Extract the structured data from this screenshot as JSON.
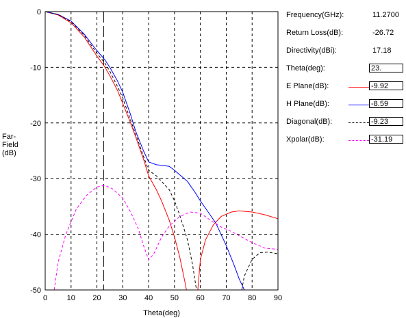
{
  "y_axis_label": [
    "Far-",
    "Field",
    "(dB)"
  ],
  "info": {
    "frequency_label": "Frequency(GHz):",
    "frequency_value": "11.2700",
    "return_loss_label": "Return Loss(dB):",
    "return_loss_value": "-26.72",
    "directivity_label": "Directivity(dBi):",
    "directivity_value": "17.18",
    "theta_label": "Theta(deg):",
    "theta_value": "23.",
    "e_plane_label": "E Plane(dB):",
    "e_plane_value": "-9.92",
    "h_plane_label": "H Plane(dB):",
    "h_plane_value": "-8.59",
    "diagonal_label": "Diagonal(dB):",
    "diagonal_value": "-9.23",
    "xpolar_label": "Xpolar(dB):",
    "xpolar_value": "-31.19"
  },
  "colors": {
    "e_plane": "#ff0000",
    "h_plane": "#0000ff",
    "diagonal": "#000000",
    "xpolar": "#ff00ff"
  },
  "chart_data": {
    "type": "line",
    "xlabel": "Theta(deg)",
    "ylabel": "Far-Field (dB)",
    "xlim": [
      0,
      90
    ],
    "ylim": [
      -50,
      0
    ],
    "xticks": [
      "0",
      "10",
      "20",
      "30",
      "40",
      "50",
      "60",
      "70",
      "80",
      "90"
    ],
    "yticks": [
      "0",
      "-10",
      "-20",
      "-30",
      "-40",
      "-50"
    ],
    "grid": true,
    "cursor_theta": 22.6,
    "series": [
      {
        "name": "E Plane(dB)",
        "color": "#ff0000",
        "style": "solid",
        "points": [
          [
            0,
            0
          ],
          [
            5,
            -0.6
          ],
          [
            10,
            -2
          ],
          [
            15,
            -4.5
          ],
          [
            20,
            -8
          ],
          [
            23,
            -9.9
          ],
          [
            25,
            -11.5
          ],
          [
            28,
            -14.2
          ],
          [
            30,
            -16.5
          ],
          [
            33,
            -20
          ],
          [
            35,
            -22.5
          ],
          [
            38,
            -26.5
          ],
          [
            40,
            -29.5
          ],
          [
            43,
            -32
          ],
          [
            45,
            -34
          ],
          [
            48,
            -37.5
          ],
          [
            50,
            -40.5
          ],
          [
            52,
            -44
          ],
          [
            54,
            -48.5
          ],
          [
            54.6,
            -50
          ]
        ]
      },
      {
        "name": "E Plane(dB) sidelobe",
        "color": "#ff0000",
        "style": "solid",
        "points": [
          [
            59,
            -50
          ],
          [
            60,
            -44.5
          ],
          [
            62,
            -41
          ],
          [
            65,
            -38.3
          ],
          [
            68,
            -36.8
          ],
          [
            72,
            -36
          ],
          [
            75,
            -35.8
          ],
          [
            80,
            -36
          ],
          [
            85,
            -36.5
          ],
          [
            90,
            -37.2
          ]
        ]
      },
      {
        "name": "H Plane(dB)",
        "color": "#0000ff",
        "style": "solid",
        "points": [
          [
            0,
            0
          ],
          [
            5,
            -0.5
          ],
          [
            10,
            -1.7
          ],
          [
            15,
            -4
          ],
          [
            20,
            -7
          ],
          [
            23,
            -8.6
          ],
          [
            25,
            -10
          ],
          [
            28,
            -12.5
          ],
          [
            30,
            -14.5
          ],
          [
            33,
            -18.5
          ],
          [
            35,
            -21.5
          ],
          [
            38,
            -25
          ],
          [
            40,
            -27
          ],
          [
            43,
            -27.5
          ],
          [
            45,
            -27.6
          ],
          [
            48,
            -27.8
          ],
          [
            50,
            -28.5
          ],
          [
            55,
            -30.5
          ],
          [
            58,
            -32.5
          ],
          [
            60,
            -34
          ],
          [
            63,
            -36
          ],
          [
            66,
            -38
          ],
          [
            70,
            -42
          ],
          [
            73,
            -45.5
          ],
          [
            75,
            -48
          ],
          [
            77,
            -50
          ]
        ]
      },
      {
        "name": "Diagonal(dB)",
        "color": "#000000",
        "style": "dashed",
        "points": [
          [
            0,
            0
          ],
          [
            5,
            -0.5
          ],
          [
            10,
            -1.8
          ],
          [
            15,
            -4.2
          ],
          [
            20,
            -7.5
          ],
          [
            23,
            -9.2
          ],
          [
            25,
            -10.7
          ],
          [
            28,
            -13.5
          ],
          [
            30,
            -15.5
          ],
          [
            33,
            -19.5
          ],
          [
            35,
            -22
          ],
          [
            38,
            -26
          ],
          [
            40,
            -28.5
          ],
          [
            43,
            -29.5
          ],
          [
            45,
            -30.5
          ],
          [
            48,
            -32
          ],
          [
            50,
            -34
          ],
          [
            52,
            -36.5
          ],
          [
            55,
            -41
          ],
          [
            57,
            -45.5
          ],
          [
            58.5,
            -50
          ]
        ]
      },
      {
        "name": "Diagonal(dB) sidelobe",
        "color": "#000000",
        "style": "dashed",
        "points": [
          [
            76,
            -50
          ],
          [
            77,
            -47.5
          ],
          [
            80,
            -44.5
          ],
          [
            83,
            -43.3
          ],
          [
            86,
            -43.2
          ],
          [
            90,
            -43.5
          ]
        ]
      },
      {
        "name": "Xpolar(dB)",
        "color": "#ff00ff",
        "style": "dashed",
        "points": [
          [
            3.5,
            -50
          ],
          [
            5,
            -45
          ],
          [
            8,
            -40
          ],
          [
            12,
            -35.5
          ],
          [
            16,
            -33
          ],
          [
            20,
            -31.5
          ],
          [
            23,
            -31.2
          ],
          [
            26,
            -31.8
          ],
          [
            30,
            -33.5
          ],
          [
            33,
            -36
          ],
          [
            36,
            -39
          ],
          [
            38,
            -42
          ],
          [
            40,
            -44.6
          ],
          [
            42,
            -43.5
          ],
          [
            45,
            -40.5
          ],
          [
            48,
            -38.5
          ],
          [
            52,
            -36.8
          ],
          [
            56,
            -36
          ],
          [
            60,
            -36.2
          ],
          [
            64,
            -37.5
          ],
          [
            68,
            -38.7
          ],
          [
            72,
            -39.5
          ],
          [
            76,
            -40.5
          ],
          [
            80,
            -41.5
          ],
          [
            85,
            -42.5
          ],
          [
            90,
            -42.7
          ]
        ]
      }
    ]
  }
}
